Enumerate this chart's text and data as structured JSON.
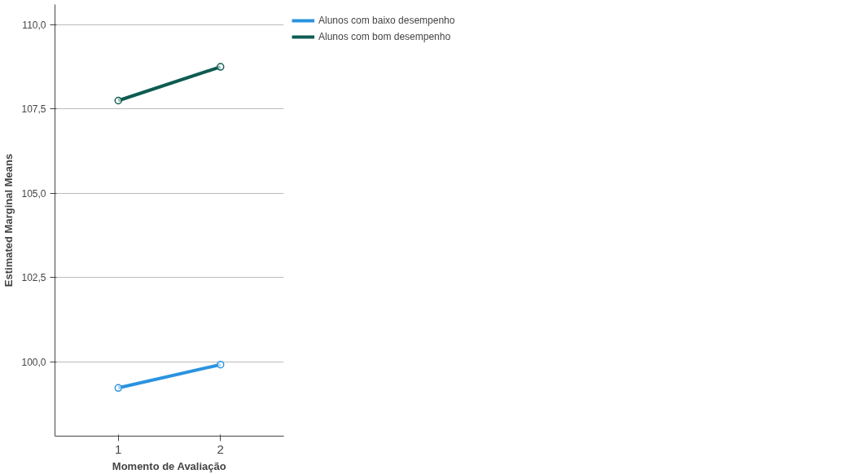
{
  "chart_data": {
    "type": "line",
    "xlabel": "Momento de Avaliação",
    "ylabel": "Estimated Marginal Means",
    "categories": [
      "1",
      "2"
    ],
    "series": [
      {
        "name": "Alunos com baixo desempenho",
        "color": "#2a93e0",
        "values": [
          99.23,
          99.92
        ]
      },
      {
        "name": "Alunos com bom desempenho",
        "color": "#0d5c52",
        "values": [
          107.75,
          108.75
        ]
      }
    ],
    "ylim": [
      97.8,
      110.6
    ],
    "yticks": [
      {
        "value": 100,
        "label": "100,0"
      },
      {
        "value": 102.5,
        "label": "102,5"
      },
      {
        "value": 105,
        "label": "105,0"
      },
      {
        "value": 107.5,
        "label": "107,5"
      },
      {
        "value": 110,
        "label": "110,0"
      }
    ],
    "grid": "y",
    "legend": "top right",
    "marker": "circle",
    "line_style": "solid"
  }
}
